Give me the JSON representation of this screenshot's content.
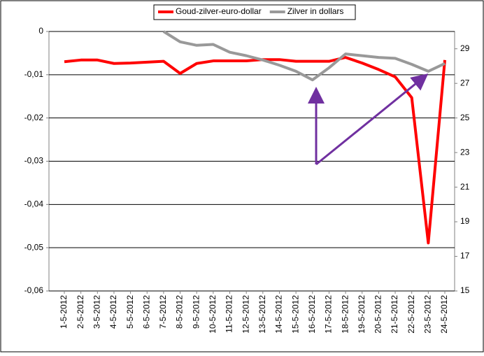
{
  "chart_data": {
    "type": "line",
    "categories": [
      "1-5-2012",
      "2-5-2012",
      "3-5-2012",
      "4-5-2012",
      "5-5-2012",
      "6-5-2012",
      "7-5-2012",
      "8-5-2012",
      "9-5-2012",
      "10-5-2012",
      "11-5-2012",
      "12-5-2012",
      "13-5-2012",
      "14-5-2012",
      "15-5-2012",
      "16-5-2012",
      "17-5-2012",
      "18-5-2012",
      "19-5-2012",
      "20-5-2012",
      "21-5-2012",
      "22-5-2012",
      "23-5-2012",
      "24-5-2012"
    ],
    "series": [
      {
        "name": "Goud-zilver-euro-dollar",
        "color": "#ff0000",
        "values": [
          -0.007,
          -0.0066,
          -0.0066,
          -0.0074,
          -0.0073,
          -0.0071,
          -0.0069,
          -0.0097,
          -0.0074,
          -0.0068,
          -0.0068,
          -0.0068,
          -0.0065,
          -0.0065,
          -0.0069,
          -0.0069,
          -0.0069,
          -0.006,
          -0.0073,
          -0.0088,
          -0.0105,
          -0.0153,
          -0.0489,
          -0.0066
        ]
      },
      {
        "name": "Zilver in dollars",
        "color": "#999999",
        "axis": "y2",
        "values": [
          null,
          null,
          null,
          null,
          null,
          null,
          30.0,
          29.4,
          29.2,
          29.25,
          28.8,
          28.6,
          28.35,
          28.05,
          27.7,
          27.2,
          27.9,
          28.7,
          28.6,
          28.5,
          28.45,
          28.1,
          27.7,
          28.15
        ]
      }
    ],
    "ylim": [
      -0.06,
      0
    ],
    "yticks": [
      0,
      {
        "value": -0.01,
        "label": "-0,01"
      },
      {
        "value": -0.02,
        "label": "-0,02"
      },
      {
        "value": -0.03,
        "label": "-0,03"
      },
      {
        "value": -0.04,
        "label": "-0,04"
      },
      {
        "value": -0.05,
        "label": "-0,05"
      },
      {
        "value": -0.06,
        "label": "-0,06"
      }
    ],
    "y2lim": [
      15,
      30
    ],
    "y2ticks": [
      15,
      17,
      19,
      21,
      23,
      25,
      27,
      29
    ],
    "grid": true
  }
}
